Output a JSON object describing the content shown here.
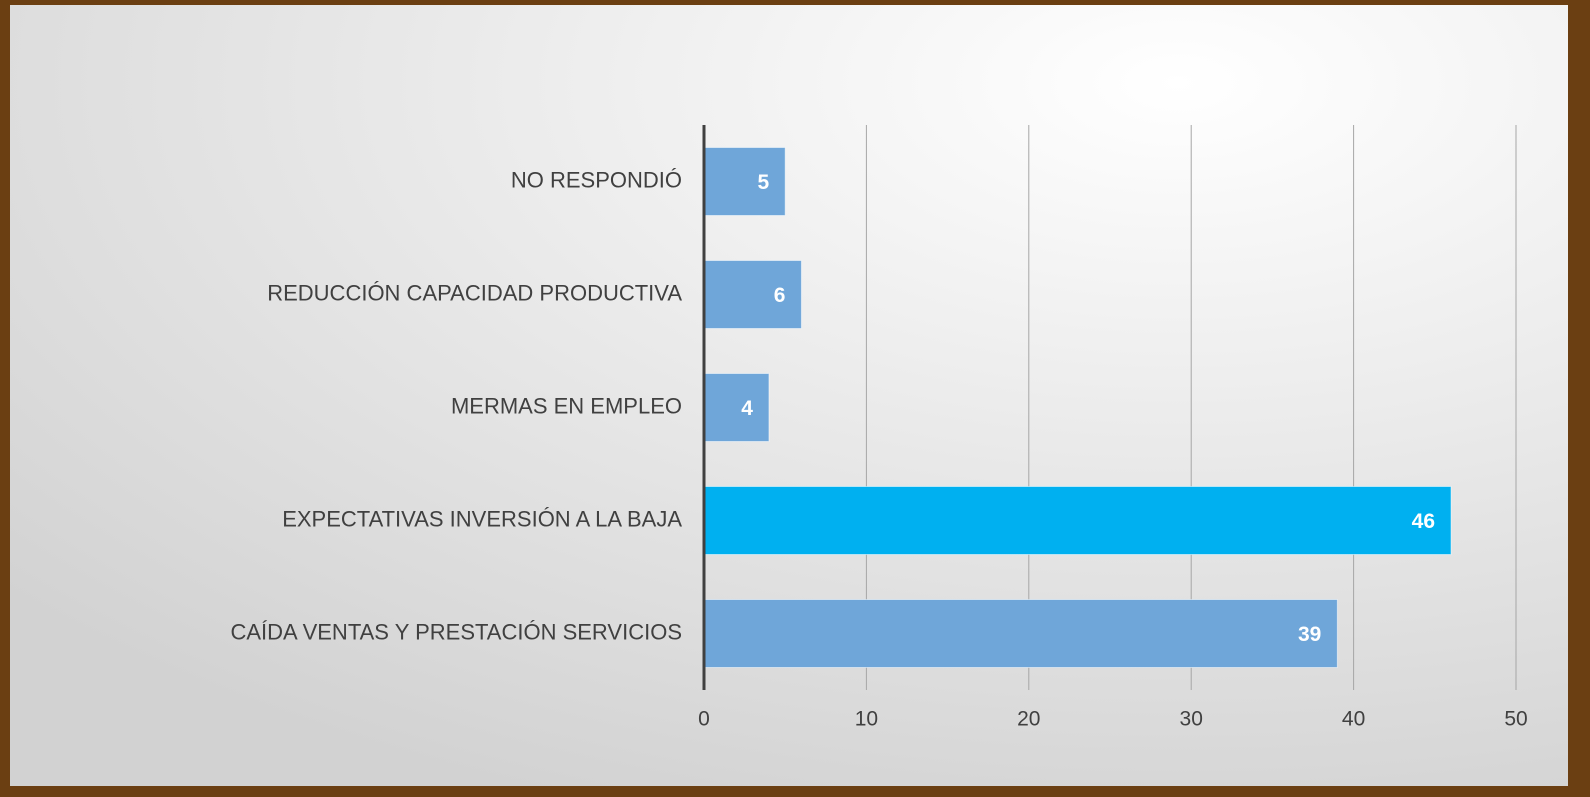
{
  "chart_data": {
    "type": "bar",
    "orientation": "horizontal",
    "categories": [
      "NO RESPONDIÓ",
      "REDUCCIÓN CAPACIDAD PRODUCTIVA",
      "MERMAS EN EMPLEO",
      "EXPECTATIVAS INVERSIÓN A LA BAJA",
      "CAÍDA VENTAS Y PRESTACIÓN SERVICIOS"
    ],
    "values": [
      5,
      6,
      4,
      46,
      39
    ],
    "colors": [
      "#6fa6d9",
      "#6fa6d9",
      "#6fa6d9",
      "#00b0f0",
      "#6fa6d9"
    ],
    "xlim": [
      0,
      50
    ],
    "xticks": [
      0,
      10,
      20,
      30,
      40,
      50
    ],
    "grid": true
  }
}
